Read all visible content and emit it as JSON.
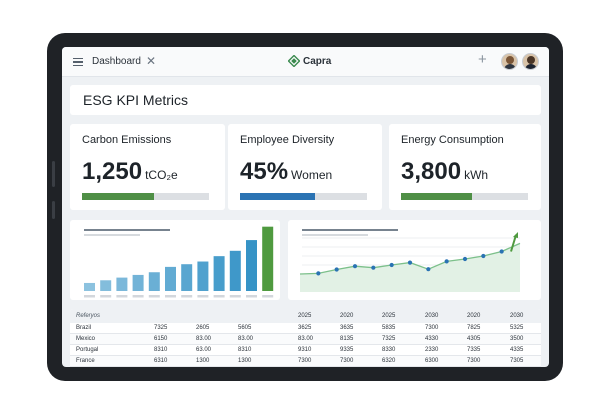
{
  "topbar": {
    "menu_icon": "menu-icon",
    "tab_label": "Dashboard",
    "close_glyph": "✕",
    "brand_name": "Capra",
    "brand_color": "#3a8a4e",
    "add_glyph": "+"
  },
  "header": {
    "title": "ESG KPI Metrics"
  },
  "kpis": [
    {
      "label": "Carbon Emissions",
      "value": "1,250",
      "unit": "tCO₂e",
      "progress": 0.57,
      "color": "#4f8f46"
    },
    {
      "label": "Employee Diversity",
      "value": "45%",
      "unit": "Women",
      "progress": 0.59,
      "color": "#2a73b3"
    },
    {
      "label": "Energy Consumption",
      "value": "3,800",
      "unit": "kWh",
      "progress": 0.56,
      "color": "#4f8f46"
    }
  ],
  "bar_chart": {
    "type": "bar",
    "values": [
      3,
      4,
      5,
      6,
      7,
      9,
      10,
      11,
      13,
      15,
      19
    ],
    "highlight_value": 24,
    "ylim": [
      0,
      25
    ],
    "bar_color": "#2e8fc4",
    "highlight_color": "#4f9a3f"
  },
  "line_chart": {
    "type": "area",
    "values": [
      6,
      6.2,
      7.5,
      8.6,
      8.1,
      9,
      9.8,
      7.6,
      10.2,
      11,
      12,
      13.5,
      16.2
    ],
    "end_value": 19,
    "ylim": [
      0,
      22
    ],
    "line_color": "#7cc08a",
    "point_color": "#2a73b3",
    "end_color": "#4f9a3f"
  },
  "table": {
    "columns": [
      "Referyos",
      "2025",
      "2020",
      "2025",
      "2030",
      "2020",
      "2030"
    ],
    "rows": [
      {
        "name": "Brazil",
        "a": "7325",
        "b": "2605",
        "c": "5605",
        "cells": [
          "3625",
          "3635",
          "5835",
          "7300",
          "7825",
          "5325"
        ]
      },
      {
        "name": "Mexico",
        "a": "6150",
        "b": "83.00",
        "c": "83.00",
        "cells": [
          "83.00",
          "8135",
          "7325",
          "4330",
          "4305",
          "3500"
        ]
      },
      {
        "name": "Portugal",
        "a": "8310",
        "b": "63.00",
        "c": "8310",
        "cells": [
          "9310",
          "9335",
          "8330",
          "2330",
          "7335",
          "4335"
        ]
      },
      {
        "name": "France",
        "a": "6310",
        "b": "1300",
        "c": "1300",
        "cells": [
          "7300",
          "7300",
          "6320",
          "6300",
          "7300",
          "7305"
        ]
      }
    ]
  }
}
